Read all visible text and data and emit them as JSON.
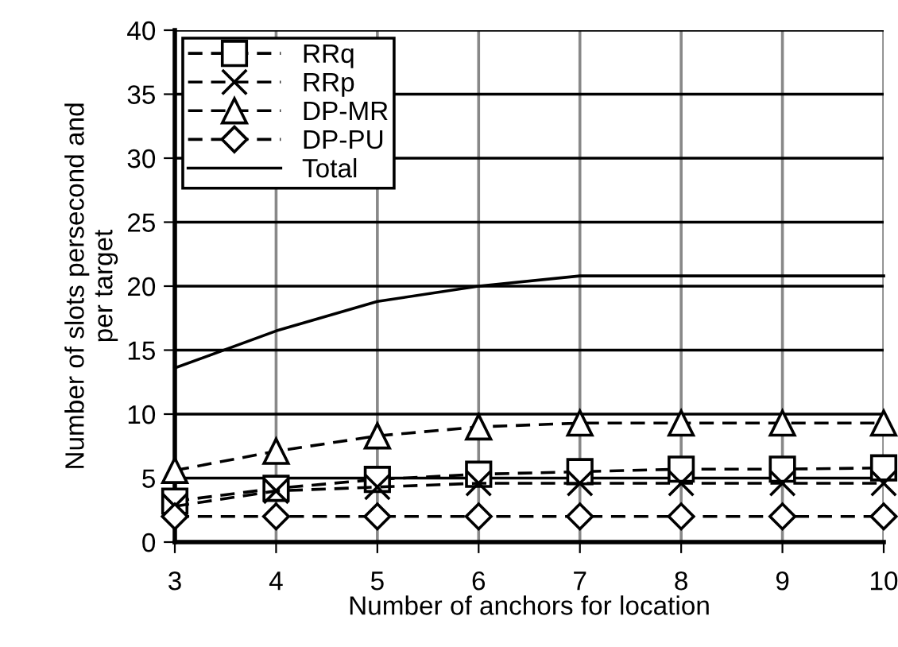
{
  "chart_data": {
    "type": "line",
    "xlabel": "Number of anchors for location",
    "ylabel": "Number of slots persecond and\nper target",
    "x": [
      3,
      4,
      5,
      6,
      7,
      8,
      9,
      10
    ],
    "series": [
      {
        "name": "RRq",
        "color": "#000000",
        "marker": "square",
        "line_style": "dashed",
        "values": [
          3.2,
          4.2,
          4.9,
          5.3,
          5.5,
          5.7,
          5.7,
          5.8
        ]
      },
      {
        "name": "RRp",
        "color": "#000000",
        "marker": "cross",
        "line_style": "dashed",
        "values": [
          2.8,
          4.0,
          4.3,
          4.6,
          4.6,
          4.6,
          4.6,
          4.6
        ]
      },
      {
        "name": "DP-MR",
        "color": "#000000",
        "marker": "triangle",
        "line_style": "dashed",
        "values": [
          5.6,
          7.1,
          8.3,
          9.0,
          9.3,
          9.3,
          9.3,
          9.3
        ]
      },
      {
        "name": "DP-PU",
        "color": "#000000",
        "marker": "diamond",
        "line_style": "dashed",
        "values": [
          2.0,
          2.0,
          2.0,
          2.0,
          2.0,
          2.0,
          2.0,
          2.0
        ]
      },
      {
        "name": "Total",
        "color": "#000000",
        "marker": "none",
        "line_style": "solid",
        "values": [
          13.6,
          16.5,
          18.8,
          20.0,
          20.8,
          20.8,
          20.8,
          20.8
        ]
      }
    ],
    "xlim": [
      3,
      10
    ],
    "xticks": [
      3,
      4,
      5,
      6,
      7,
      8,
      9,
      10
    ],
    "ylim": [
      0,
      40
    ],
    "yticks": [
      0,
      5,
      10,
      15,
      20,
      25,
      30,
      35,
      40
    ],
    "grid": true,
    "legend": "top left"
  }
}
